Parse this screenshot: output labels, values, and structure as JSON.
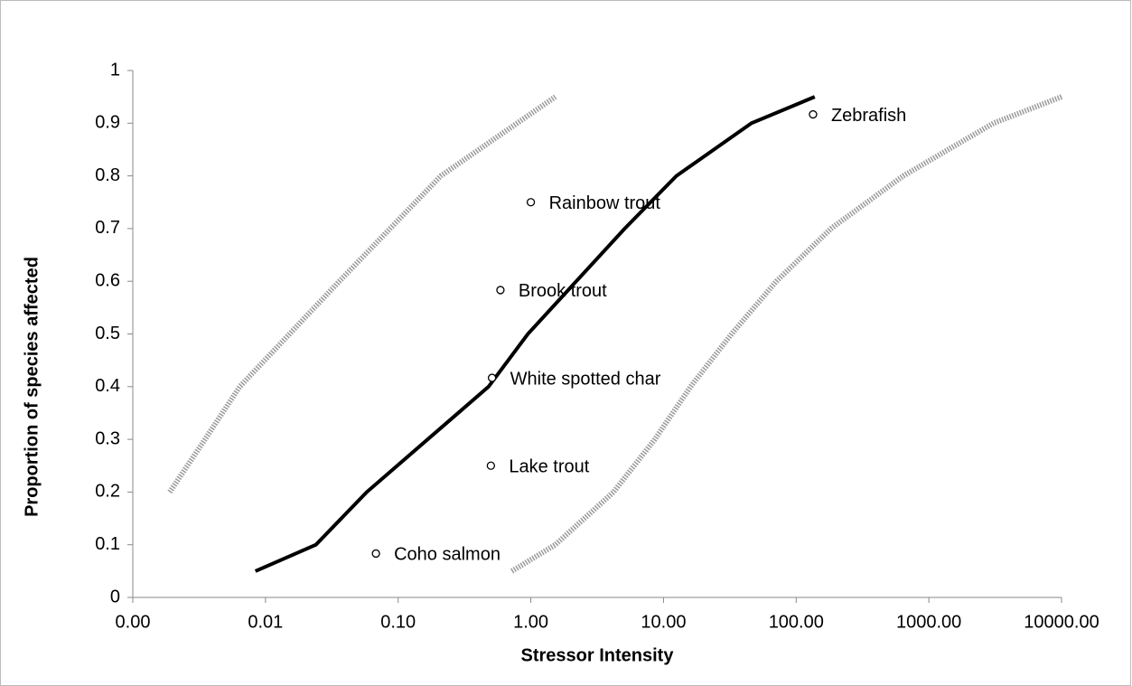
{
  "chart_data": {
    "type": "line",
    "x_label": "Stressor Intensity",
    "y_label": "Proportion of species affected",
    "xlog": true,
    "xlim": [
      0.001,
      10000
    ],
    "ylim": [
      0,
      1
    ],
    "xticks": [
      {
        "value": 0.001,
        "label": "0.00"
      },
      {
        "value": 0.01,
        "label": "0.01"
      },
      {
        "value": 0.1,
        "label": "0.10"
      },
      {
        "value": 1,
        "label": "1.00"
      },
      {
        "value": 10,
        "label": "10.00"
      },
      {
        "value": 100,
        "label": "100.00"
      },
      {
        "value": 1000,
        "label": "1000.00"
      },
      {
        "value": 10000,
        "label": "10000.00"
      }
    ],
    "yticks": [
      0,
      0.1,
      0.2,
      0.3,
      0.4,
      0.5,
      0.6,
      0.7,
      0.8,
      0.9,
      1
    ],
    "series": [
      {
        "color": "#000000",
        "style": "solid",
        "x": [
          0.0084,
          0.024,
          0.058,
          0.48,
          0.95,
          5.1,
          12.5,
          46,
          138
        ],
        "values": [
          0.05,
          0.1,
          0.2,
          0.4,
          0.5,
          0.7,
          0.8,
          0.9,
          0.95
        ]
      },
      {
        "color": "#9a9a9a",
        "style": "dotted",
        "x": [
          0.0019,
          0.0035,
          0.0064,
          0.036,
          0.21,
          1.53
        ],
        "values": [
          0.2,
          0.3,
          0.4,
          0.6,
          0.8,
          0.95
        ]
      },
      {
        "color": "#9a9a9a",
        "style": "dotted",
        "x": [
          0.72,
          1.53,
          4.2,
          8.6,
          16,
          32.6,
          71,
          183,
          641,
          3070,
          10000
        ],
        "values": [
          0.05,
          0.1,
          0.2,
          0.3,
          0.4,
          0.5,
          0.6,
          0.7,
          0.8,
          0.9,
          0.95
        ]
      }
    ],
    "points": {
      "labels": [
        "Coho salmon",
        "Lake trout",
        "White spotted char",
        "Brook trout",
        "Rainbow trout",
        "Zebrafish"
      ],
      "x": [
        0.068,
        0.5,
        0.51,
        0.59,
        1.0,
        134
      ],
      "values": [
        0.0833,
        0.25,
        0.4167,
        0.5833,
        0.75,
        0.9167
      ]
    }
  }
}
